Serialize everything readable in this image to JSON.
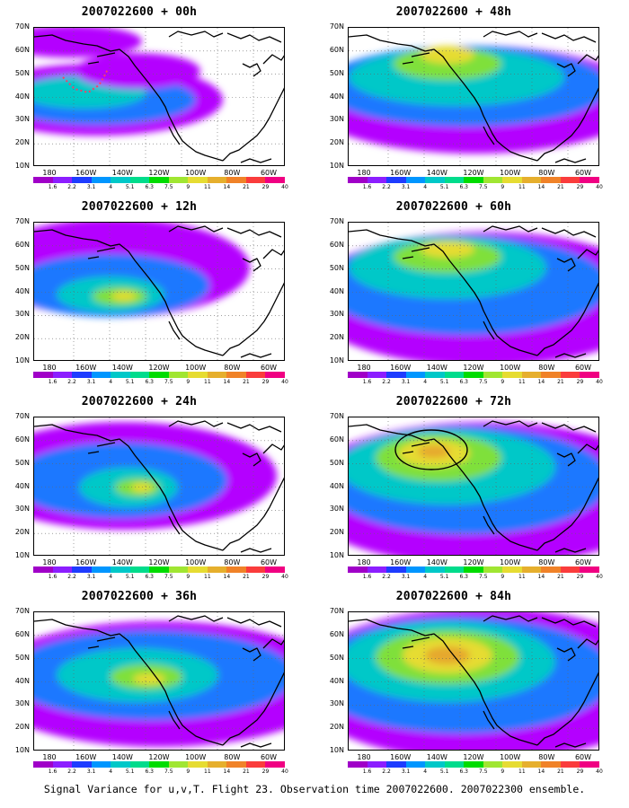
{
  "panels": [
    {
      "title": "2007022600 + 00h",
      "lead_hours": 0,
      "circle": false,
      "dotted_ring": true,
      "blobs": [
        {
          "cx": 70,
          "cy": 80,
          "rx": 140,
          "ry": 40,
          "level": 1
        },
        {
          "cx": 70,
          "cy": 80,
          "rx": 110,
          "ry": 28,
          "level": 2
        },
        {
          "cx": 55,
          "cy": 72,
          "rx": 70,
          "ry": 18,
          "level": 3
        },
        {
          "cx": 115,
          "cy": 48,
          "rx": 70,
          "ry": 20,
          "level": 1
        },
        {
          "cx": 40,
          "cy": 15,
          "rx": 80,
          "ry": 18,
          "level": 1
        }
      ]
    },
    {
      "title": "2007022600 + 48h",
      "lead_hours": 48,
      "circle": false,
      "dotted_ring": false,
      "blobs": [
        {
          "cx": 140,
          "cy": 80,
          "rx": 190,
          "ry": 60,
          "level": 1
        },
        {
          "cx": 130,
          "cy": 65,
          "rx": 160,
          "ry": 45,
          "level": 2
        },
        {
          "cx": 120,
          "cy": 55,
          "rx": 120,
          "ry": 32,
          "level": 3
        },
        {
          "cx": 110,
          "cy": 40,
          "rx": 60,
          "ry": 18,
          "level": 4
        },
        {
          "cx": 110,
          "cy": 30,
          "rx": 30,
          "ry": 10,
          "level": 5
        }
      ]
    },
    {
      "title": "2007022600 + 12h",
      "lead_hours": 12,
      "circle": false,
      "dotted_ring": false,
      "blobs": [
        {
          "cx": 90,
          "cy": 50,
          "rx": 150,
          "ry": 55,
          "level": 1
        },
        {
          "cx": 85,
          "cy": 70,
          "rx": 110,
          "ry": 35,
          "level": 2
        },
        {
          "cx": 85,
          "cy": 80,
          "rx": 60,
          "ry": 20,
          "level": 3
        },
        {
          "cx": 95,
          "cy": 82,
          "rx": 30,
          "ry": 10,
          "level": 4
        },
        {
          "cx": 100,
          "cy": 82,
          "rx": 14,
          "ry": 5,
          "level": 5
        }
      ]
    },
    {
      "title": "2007022600 + 60h",
      "lead_hours": 60,
      "circle": false,
      "dotted_ring": false,
      "blobs": [
        {
          "cx": 150,
          "cy": 85,
          "rx": 200,
          "ry": 75,
          "level": 1
        },
        {
          "cx": 130,
          "cy": 70,
          "rx": 160,
          "ry": 55,
          "level": 2
        },
        {
          "cx": 110,
          "cy": 50,
          "rx": 110,
          "ry": 35,
          "level": 3
        },
        {
          "cx": 110,
          "cy": 38,
          "rx": 60,
          "ry": 18,
          "level": 4
        },
        {
          "cx": 110,
          "cy": 30,
          "rx": 30,
          "ry": 9,
          "level": 5
        }
      ]
    },
    {
      "title": "2007022600 + 24h",
      "lead_hours": 24,
      "circle": false,
      "dotted_ring": false,
      "blobs": [
        {
          "cx": 100,
          "cy": 65,
          "rx": 170,
          "ry": 60,
          "level": 1
        },
        {
          "cx": 95,
          "cy": 70,
          "rx": 120,
          "ry": 42,
          "level": 2
        },
        {
          "cx": 105,
          "cy": 78,
          "rx": 55,
          "ry": 22,
          "level": 3
        },
        {
          "cx": 115,
          "cy": 78,
          "rx": 25,
          "ry": 10,
          "level": 4
        },
        {
          "cx": 120,
          "cy": 78,
          "rx": 12,
          "ry": 5,
          "level": 5
        }
      ]
    },
    {
      "title": "2007022600 + 72h",
      "lead_hours": 72,
      "circle": true,
      "dotted_ring": false,
      "blobs": [
        {
          "cx": 150,
          "cy": 85,
          "rx": 210,
          "ry": 80,
          "level": 1
        },
        {
          "cx": 130,
          "cy": 70,
          "rx": 160,
          "ry": 60,
          "level": 2
        },
        {
          "cx": 110,
          "cy": 55,
          "rx": 120,
          "ry": 42,
          "level": 3
        },
        {
          "cx": 100,
          "cy": 45,
          "rx": 70,
          "ry": 26,
          "level": 4
        },
        {
          "cx": 95,
          "cy": 40,
          "rx": 40,
          "ry": 15,
          "level": 5
        },
        {
          "cx": 95,
          "cy": 38,
          "rx": 18,
          "ry": 7,
          "level": 6
        }
      ]
    },
    {
      "title": "2007022600 + 36h",
      "lead_hours": 36,
      "circle": false,
      "dotted_ring": false,
      "blobs": [
        {
          "cx": 140,
          "cy": 80,
          "rx": 200,
          "ry": 70,
          "level": 1
        },
        {
          "cx": 130,
          "cy": 70,
          "rx": 160,
          "ry": 50,
          "level": 2
        },
        {
          "cx": 115,
          "cy": 70,
          "rx": 90,
          "ry": 30,
          "level": 3
        },
        {
          "cx": 125,
          "cy": 72,
          "rx": 40,
          "ry": 14,
          "level": 4
        },
        {
          "cx": 128,
          "cy": 74,
          "rx": 18,
          "ry": 6,
          "level": 5
        }
      ]
    },
    {
      "title": "2007022600 + 84h",
      "lead_hours": 84,
      "circle": false,
      "dotted_ring": false,
      "blobs": [
        {
          "cx": 150,
          "cy": 80,
          "rx": 210,
          "ry": 85,
          "level": 1
        },
        {
          "cx": 125,
          "cy": 70,
          "rx": 170,
          "ry": 65,
          "level": 2
        },
        {
          "cx": 110,
          "cy": 55,
          "rx": 120,
          "ry": 45,
          "level": 3
        },
        {
          "cx": 110,
          "cy": 50,
          "rx": 80,
          "ry": 30,
          "level": 4
        },
        {
          "cx": 110,
          "cy": 48,
          "rx": 50,
          "ry": 20,
          "level": 5
        },
        {
          "cx": 110,
          "cy": 48,
          "rx": 25,
          "ry": 10,
          "level": 6
        }
      ]
    }
  ],
  "lat_labels": [
    "70N",
    "60N",
    "50N",
    "40N",
    "30N",
    "20N",
    "10N"
  ],
  "lon_labels": [
    "180",
    "160W",
    "140W",
    "120W",
    "100W",
    "80W",
    "60W"
  ],
  "colorbar": {
    "colors": [
      "#a000c8",
      "#8c1eff",
      "#1e3cff",
      "#0096ff",
      "#00c8c8",
      "#00dc8c",
      "#00dc00",
      "#a0e632",
      "#e6dc32",
      "#e6af2d",
      "#f08228",
      "#fa3c3c",
      "#f00082"
    ],
    "ticks": [
      "1.6",
      "2.2",
      "3.1",
      "4",
      "5.1",
      "6.3",
      "7.5",
      "9",
      "11",
      "14",
      "21",
      "29",
      "40"
    ]
  },
  "level_colors": [
    "#ffffff",
    "#b400ff",
    "#1e78ff",
    "#00c8c8",
    "#7fe03a",
    "#e6dc32",
    "#e6a82d"
  ],
  "caption": "Signal Variance for u,v,T. Flight 23. Observation time 2007022600. 2007022300 ensemble."
}
